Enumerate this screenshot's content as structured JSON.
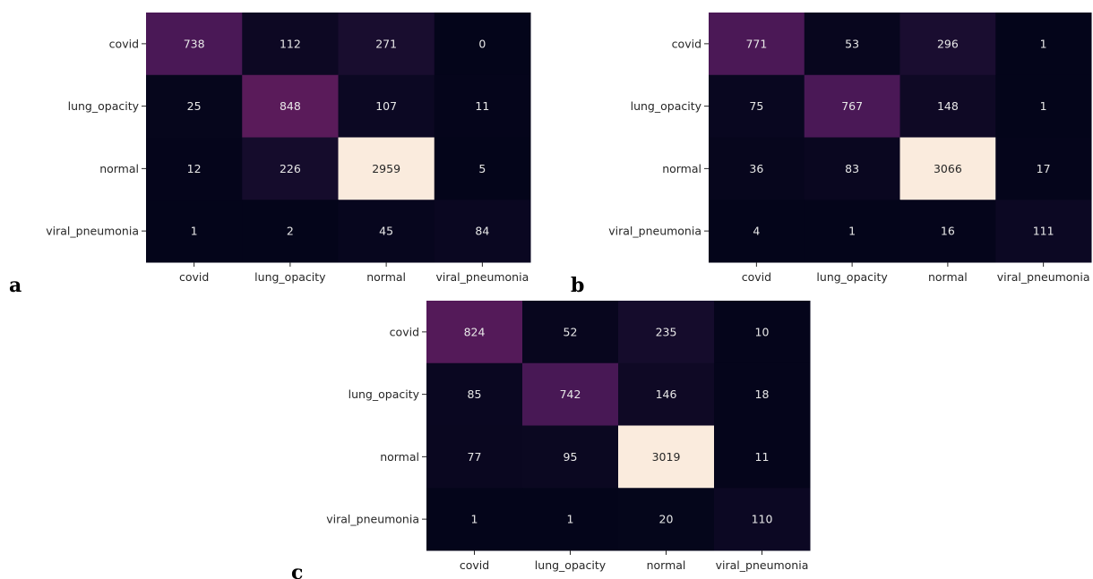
{
  "chart_data": [
    {
      "type": "heatmap",
      "panel_label": "a",
      "row_labels": [
        "covid",
        "lung_opacity",
        "normal",
        "viral_pneumonia"
      ],
      "col_labels": [
        "covid",
        "lung_opacity",
        "normal",
        "viral_pneumonia"
      ],
      "values": [
        [
          738,
          112,
          271,
          0
        ],
        [
          25,
          848,
          107,
          11
        ],
        [
          12,
          226,
          2959,
          5
        ],
        [
          1,
          2,
          45,
          84
        ]
      ],
      "colormap": "rocket",
      "colorbar": false
    },
    {
      "type": "heatmap",
      "panel_label": "b",
      "row_labels": [
        "covid",
        "lung_opacity",
        "normal",
        "viral_pneumonia"
      ],
      "col_labels": [
        "covid",
        "lung_opacity",
        "normal",
        "viral_pneumonia"
      ],
      "values": [
        [
          771,
          53,
          296,
          1
        ],
        [
          75,
          767,
          148,
          1
        ],
        [
          36,
          83,
          3066,
          17
        ],
        [
          4,
          1,
          16,
          111
        ]
      ],
      "colormap": "rocket",
      "colorbar": false
    },
    {
      "type": "heatmap",
      "panel_label": "c",
      "row_labels": [
        "covid",
        "lung_opacity",
        "normal",
        "viral_pneumonia"
      ],
      "col_labels": [
        "covid",
        "lung_opacity",
        "normal",
        "viral_pneumonia"
      ],
      "values": [
        [
          824,
          52,
          235,
          10
        ],
        [
          85,
          742,
          146,
          18
        ],
        [
          77,
          95,
          3019,
          11
        ],
        [
          1,
          1,
          20,
          110
        ]
      ],
      "colormap": "rocket",
      "colorbar": false
    }
  ]
}
